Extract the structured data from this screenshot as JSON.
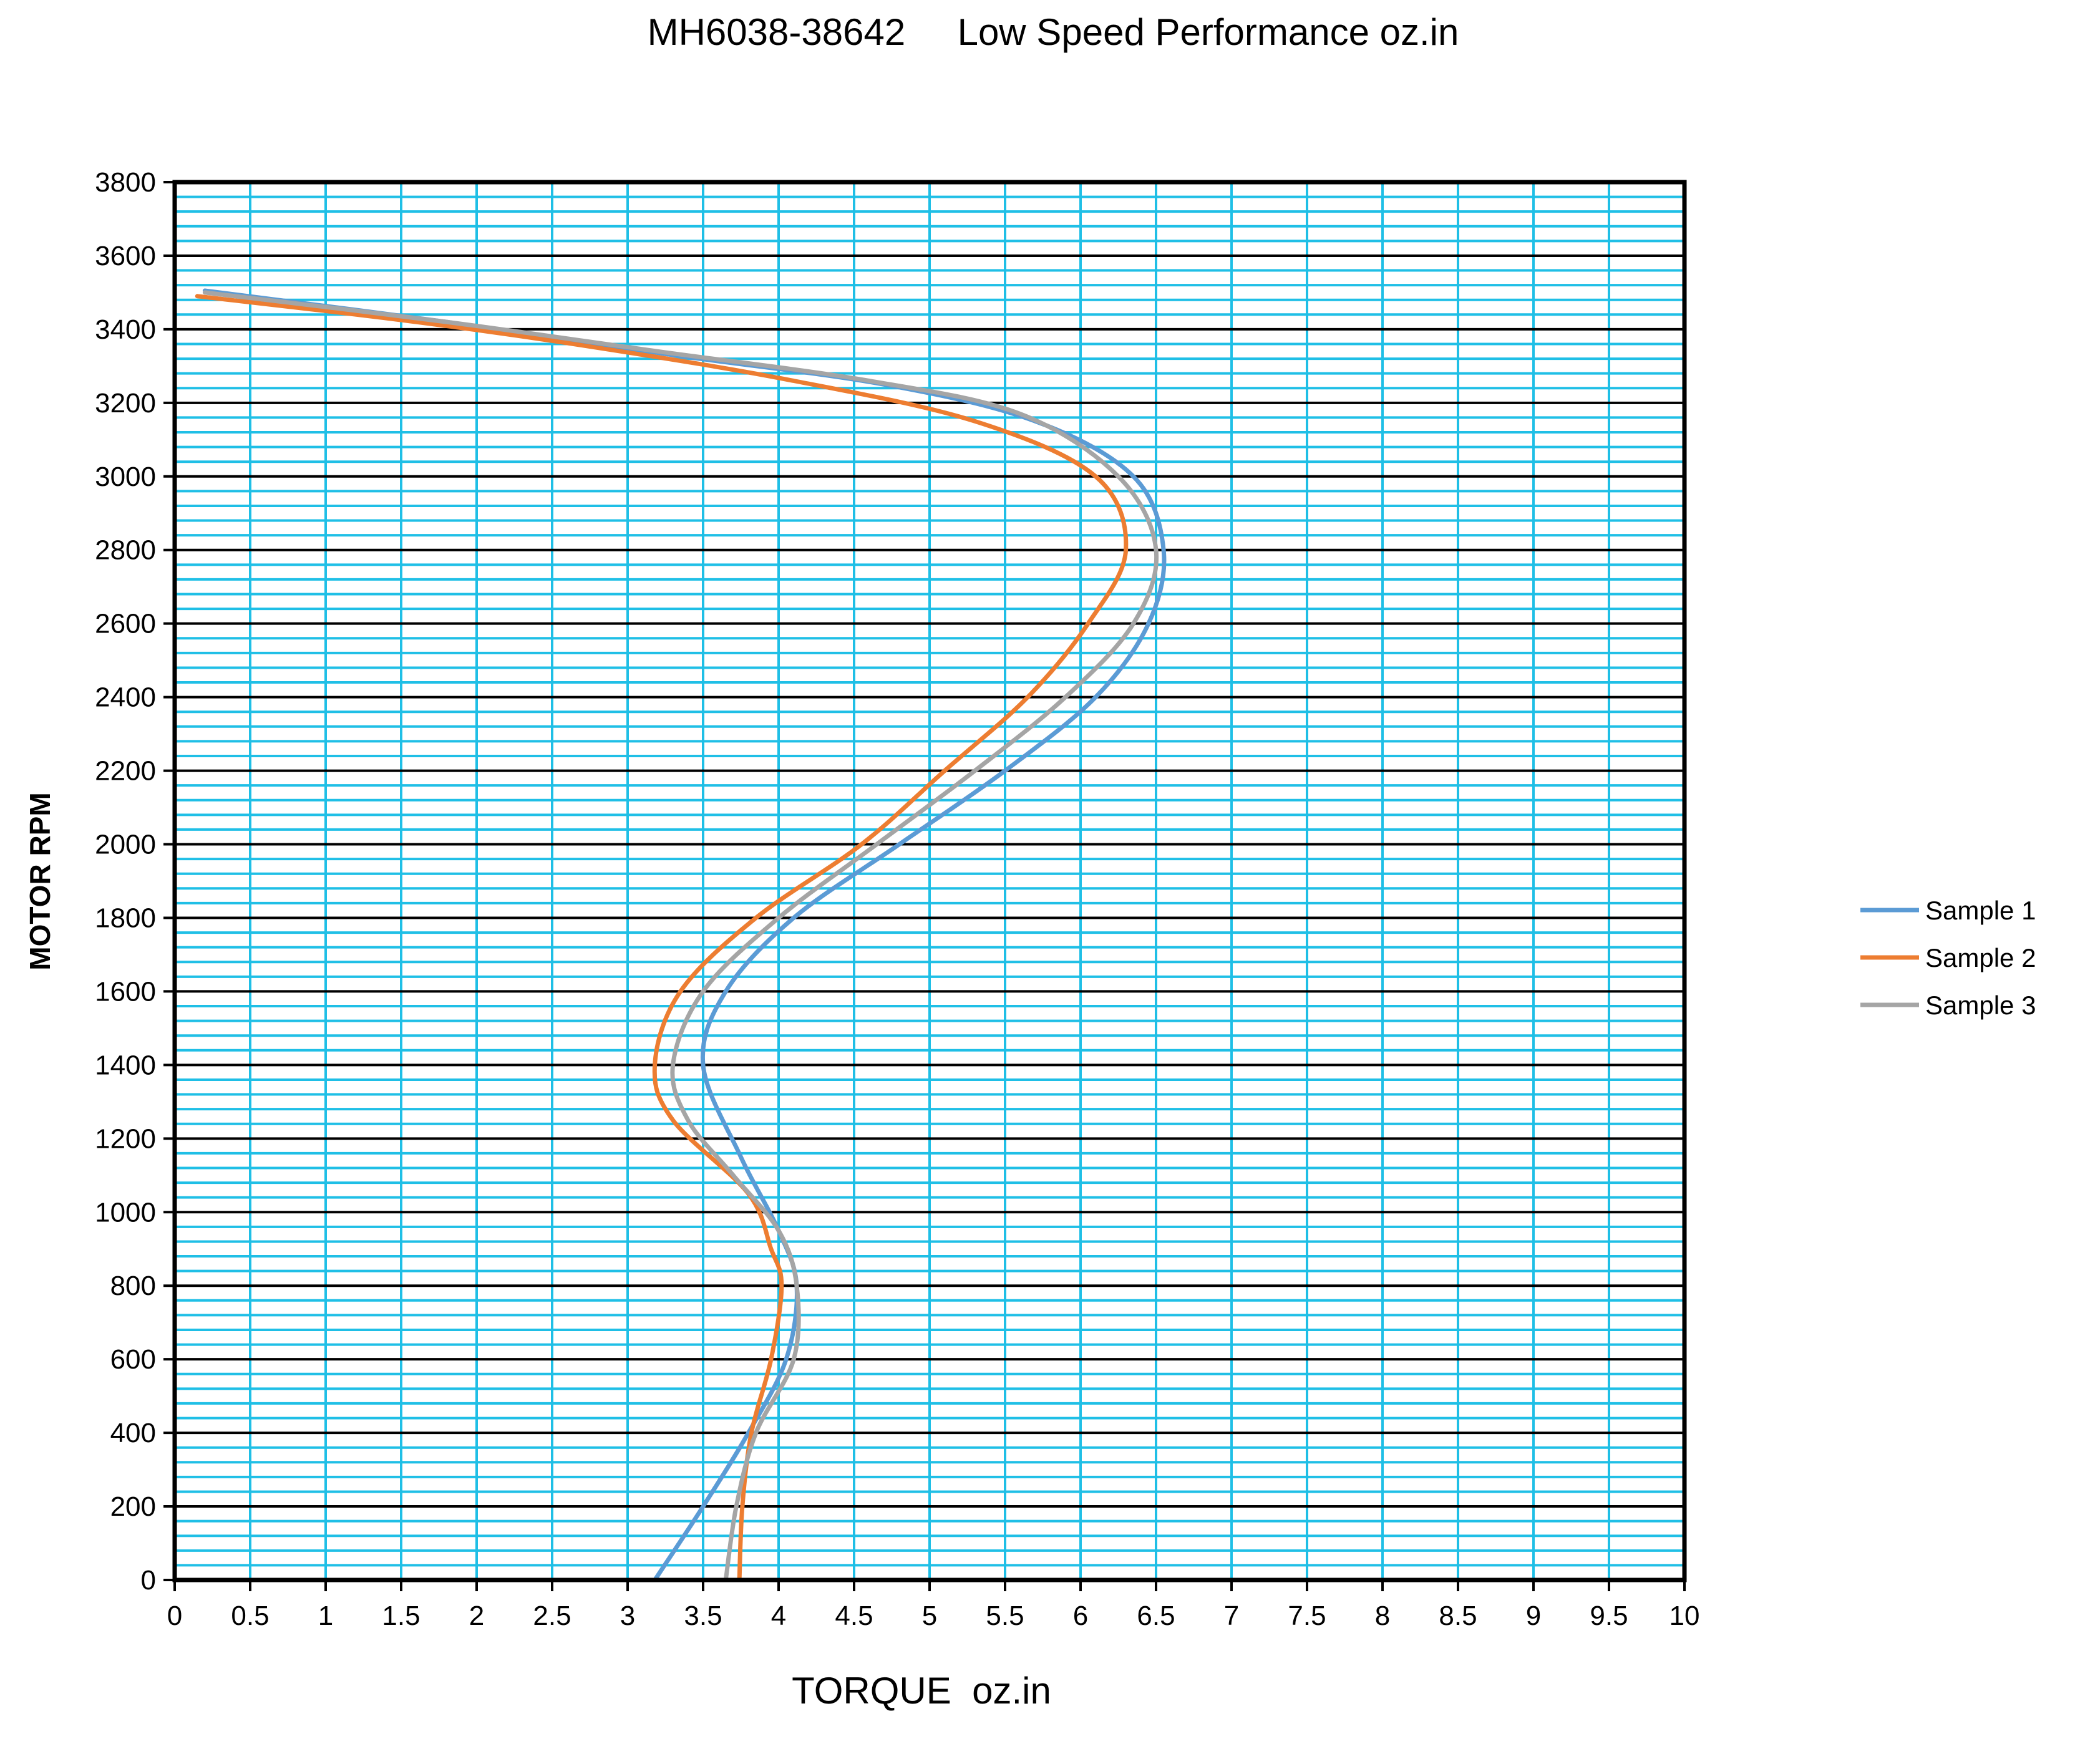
{
  "chart_data": {
    "type": "line",
    "title": "MH6038-38642     Low Speed Performance oz.in",
    "xlabel": "TORQUE  oz.in",
    "ylabel": "MOTOR RPM",
    "xlim": [
      0,
      10
    ],
    "ylim": [
      0,
      3800
    ],
    "x_ticks": [
      "0",
      "0.5",
      "1",
      "1.5",
      "2",
      "2.5",
      "3",
      "3.5",
      "4",
      "4.5",
      "5",
      "5.5",
      "6",
      "6.5",
      "7",
      "7.5",
      "8",
      "8.5",
      "9",
      "9.5",
      "10"
    ],
    "y_ticks": [
      "0",
      "200",
      "400",
      "600",
      "800",
      "1000",
      "1200",
      "1400",
      "1600",
      "1800",
      "2000",
      "2200",
      "2400",
      "2600",
      "2800",
      "3000",
      "3200",
      "3400",
      "3600",
      "3800"
    ],
    "grid": true,
    "legend_position": "right",
    "colors": {
      "plot_background": "#ffffff",
      "major_gridline": "#000000",
      "minor_gridline": "#1fbfe6",
      "frame": "#000000"
    },
    "series": [
      {
        "name": "Sample 1",
        "color": "#5b9bd5",
        "points": [
          [
            3.18,
            0
          ],
          [
            3.5,
            200
          ],
          [
            3.8,
            400
          ],
          [
            4.05,
            600
          ],
          [
            4.12,
            800
          ],
          [
            4.0,
            950
          ],
          [
            3.75,
            1150
          ],
          [
            3.5,
            1400
          ],
          [
            3.65,
            1600
          ],
          [
            4.1,
            1800
          ],
          [
            4.8,
            2000
          ],
          [
            5.5,
            2200
          ],
          [
            6.1,
            2400
          ],
          [
            6.45,
            2600
          ],
          [
            6.55,
            2800
          ],
          [
            6.35,
            3000
          ],
          [
            5.7,
            3150
          ],
          [
            4.7,
            3250
          ],
          [
            3.3,
            3330
          ],
          [
            1.8,
            3420
          ],
          [
            0.2,
            3505
          ]
        ]
      },
      {
        "name": "Sample 2",
        "color": "#ed7d31",
        "points": [
          [
            3.74,
            0
          ],
          [
            3.76,
            200
          ],
          [
            3.82,
            400
          ],
          [
            3.95,
            600
          ],
          [
            4.02,
            800
          ],
          [
            3.95,
            900
          ],
          [
            3.8,
            1050
          ],
          [
            3.3,
            1250
          ],
          [
            3.18,
            1400
          ],
          [
            3.35,
            1600
          ],
          [
            3.85,
            1800
          ],
          [
            4.55,
            2000
          ],
          [
            5.1,
            2200
          ],
          [
            5.65,
            2400
          ],
          [
            6.05,
            2600
          ],
          [
            6.3,
            2800
          ],
          [
            6.1,
            3000
          ],
          [
            5.3,
            3150
          ],
          [
            4.1,
            3260
          ],
          [
            2.8,
            3350
          ],
          [
            1.6,
            3420
          ],
          [
            0.15,
            3490
          ]
        ]
      },
      {
        "name": "Sample 3",
        "color": "#a5a5a5",
        "points": [
          [
            3.65,
            0
          ],
          [
            3.72,
            200
          ],
          [
            3.85,
            400
          ],
          [
            4.1,
            600
          ],
          [
            4.12,
            800
          ],
          [
            4.0,
            950
          ],
          [
            3.7,
            1100
          ],
          [
            3.4,
            1250
          ],
          [
            3.3,
            1400
          ],
          [
            3.5,
            1600
          ],
          [
            4.0,
            1800
          ],
          [
            4.65,
            2000
          ],
          [
            5.3,
            2200
          ],
          [
            5.9,
            2400
          ],
          [
            6.35,
            2600
          ],
          [
            6.5,
            2800
          ],
          [
            6.25,
            3000
          ],
          [
            5.6,
            3170
          ],
          [
            4.6,
            3260
          ],
          [
            3.2,
            3340
          ],
          [
            1.8,
            3420
          ],
          [
            0.2,
            3500
          ]
        ]
      }
    ]
  }
}
